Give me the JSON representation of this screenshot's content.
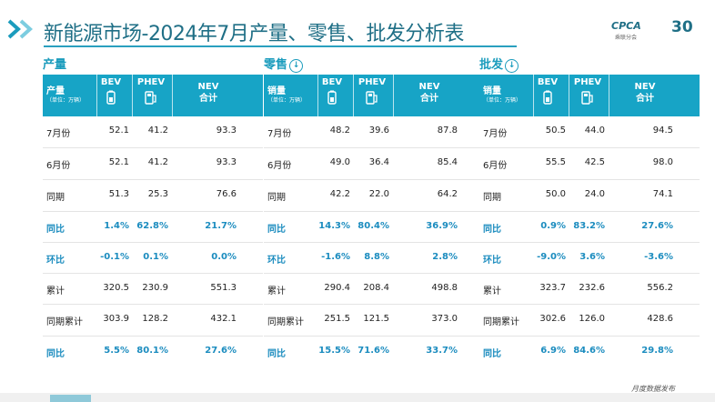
{
  "title": "新能源市场-2024年7月产量、零售、批发分析表",
  "logo": {
    "brand": "CPCA",
    "sub": "乘联分会",
    "anniv": "30"
  },
  "footer_text": "月度数据发布",
  "accent_color": "#17a4c6",
  "sections": [
    {
      "title": "产量",
      "has_icon": false,
      "header": {
        "label": "产量",
        "unit": "（单位：万辆）",
        "bev": "BEV",
        "phev": "PHEV",
        "nev1": "NEV",
        "nev2": "合计"
      },
      "rows": [
        {
          "label": "7月份",
          "bev": "52.1",
          "phev": "41.2",
          "nev": "93.3",
          "blue": false
        },
        {
          "label": "6月份",
          "bev": "52.1",
          "phev": "41.2",
          "nev": "93.3",
          "blue": false
        },
        {
          "label": "同期",
          "bev": "51.3",
          "phev": "25.3",
          "nev": "76.6",
          "blue": false
        },
        {
          "label": "同比",
          "bev": "1.4%",
          "phev": "62.8%",
          "nev": "21.7%",
          "blue": true
        },
        {
          "label": "环比",
          "bev": "-0.1%",
          "phev": "0.1%",
          "nev": "0.0%",
          "blue": true
        },
        {
          "label": "累计",
          "bev": "320.5",
          "phev": "230.9",
          "nev": "551.3",
          "blue": false
        },
        {
          "label": "同期累计",
          "bev": "303.9",
          "phev": "128.2",
          "nev": "432.1",
          "blue": false
        },
        {
          "label": "同比",
          "bev": "5.5%",
          "phev": "80.1%",
          "nev": "27.6%",
          "blue": true
        }
      ]
    },
    {
      "title": "零售",
      "has_icon": true,
      "header": {
        "label": "销量",
        "unit": "（单位：万辆）",
        "bev": "BEV",
        "phev": "PHEV",
        "nev1": "NEV",
        "nev2": "合计"
      },
      "rows": [
        {
          "label": "7月份",
          "bev": "48.2",
          "phev": "39.6",
          "nev": "87.8",
          "blue": false
        },
        {
          "label": "6月份",
          "bev": "49.0",
          "phev": "36.4",
          "nev": "85.4",
          "blue": false
        },
        {
          "label": "同期",
          "bev": "42.2",
          "phev": "22.0",
          "nev": "64.2",
          "blue": false
        },
        {
          "label": "同比",
          "bev": "14.3%",
          "phev": "80.4%",
          "nev": "36.9%",
          "blue": true
        },
        {
          "label": "环比",
          "bev": "-1.6%",
          "phev": "8.8%",
          "nev": "2.8%",
          "blue": true
        },
        {
          "label": "累计",
          "bev": "290.4",
          "phev": "208.4",
          "nev": "498.8",
          "blue": false
        },
        {
          "label": "同期累计",
          "bev": "251.5",
          "phev": "121.5",
          "nev": "373.0",
          "blue": false
        },
        {
          "label": "同比",
          "bev": "15.5%",
          "phev": "71.6%",
          "nev": "33.7%",
          "blue": true
        }
      ]
    },
    {
      "title": "批发",
      "has_icon": true,
      "header": {
        "label": "销量",
        "unit": "（单位：万辆）",
        "bev": "BEV",
        "phev": "PHEV",
        "nev1": "NEV",
        "nev2": "合计"
      },
      "rows": [
        {
          "label": "7月份",
          "bev": "50.5",
          "phev": "44.0",
          "nev": "94.5",
          "blue": false
        },
        {
          "label": "6月份",
          "bev": "55.5",
          "phev": "42.5",
          "nev": "98.0",
          "blue": false
        },
        {
          "label": "同期",
          "bev": "50.0",
          "phev": "24.0",
          "nev": "74.1",
          "blue": false
        },
        {
          "label": "同比",
          "bev": "0.9%",
          "phev": "83.2%",
          "nev": "27.6%",
          "blue": true
        },
        {
          "label": "环比",
          "bev": "-9.0%",
          "phev": "3.6%",
          "nev": "-3.6%",
          "blue": true
        },
        {
          "label": "累计",
          "bev": "323.7",
          "phev": "232.6",
          "nev": "556.2",
          "blue": false
        },
        {
          "label": "同期累计",
          "bev": "302.6",
          "phev": "126.0",
          "nev": "428.6",
          "blue": false
        },
        {
          "label": "同比",
          "bev": "6.9%",
          "phev": "84.6%",
          "nev": "29.8%",
          "blue": true
        }
      ]
    }
  ]
}
